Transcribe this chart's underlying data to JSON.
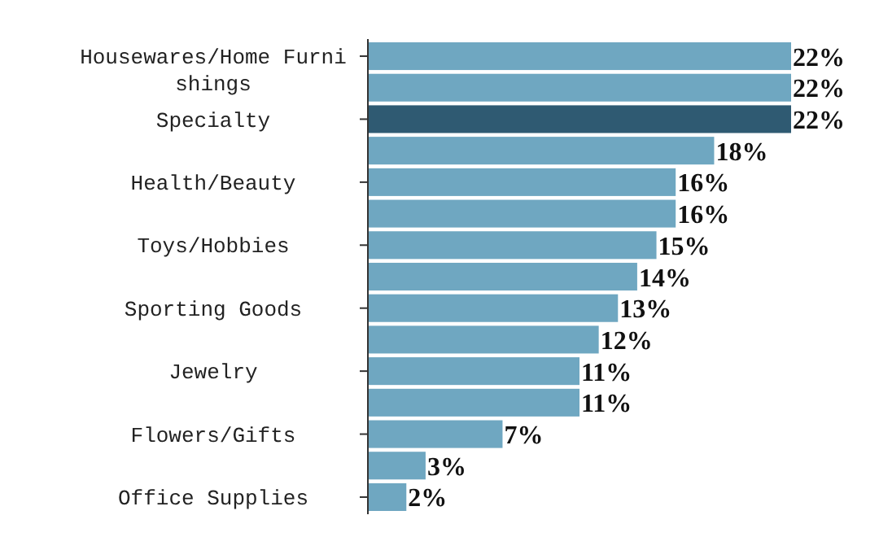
{
  "chart_data": {
    "type": "bar",
    "orientation": "horizontal",
    "categories": [
      "Housewares/Home Furnishings",
      null,
      "Specialty",
      null,
      "Health/Beauty",
      null,
      "Toys/Hobbies",
      null,
      "Sporting Goods",
      null,
      "Jewelry",
      null,
      "Flowers/Gifts",
      null,
      "Office Supplies"
    ],
    "values": [
      22,
      22,
      22,
      18,
      16,
      16,
      15,
      14,
      13,
      12,
      11,
      11,
      7,
      3,
      2
    ],
    "colors": [
      "#6fa7c1",
      "#6fa7c1",
      "#2f5a72",
      "#6fa7c1",
      "#6fa7c1",
      "#6fa7c1",
      "#6fa7c1",
      "#6fa7c1",
      "#6fa7c1",
      "#6fa7c1",
      "#6fa7c1",
      "#6fa7c1",
      "#6fa7c1",
      "#6fa7c1",
      "#6fa7c1"
    ],
    "value_labels": [
      "22%",
      "22%",
      "22%",
      "18%",
      "16%",
      "16%",
      "15%",
      "14%",
      "13%",
      "12%",
      "11%",
      "11%",
      "7%",
      "3%",
      "2%"
    ]
  }
}
